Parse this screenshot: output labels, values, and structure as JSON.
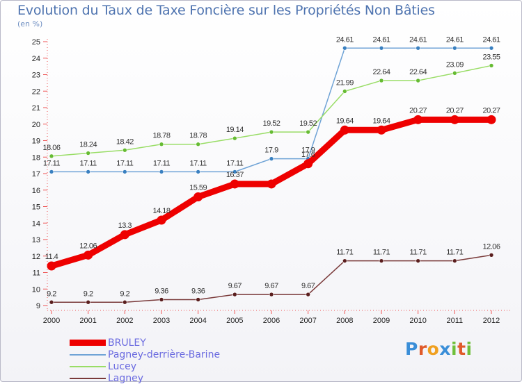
{
  "title": "Evolution du Taux de Taxe Foncière sur les Propriétés Non Bâties",
  "unit_label": "(en %)",
  "logo": {
    "text": "Proxiti",
    "letters": [
      {
        "ch": "P",
        "color": "#3a8ed8"
      },
      {
        "ch": "r",
        "color": "#e05a2a"
      },
      {
        "ch": "o",
        "color": "#f0a020"
      },
      {
        "ch": "x",
        "color": "#3a8ed8"
      },
      {
        "ch": "i",
        "color": "#6fbf3a"
      },
      {
        "ch": "t",
        "color": "#e05a2a"
      },
      {
        "ch": "i",
        "color": "#6fbf3a"
      }
    ]
  },
  "chart_data": {
    "type": "line",
    "title": "Evolution du Taux de Taxe Foncière sur les Propriétés Non Bâties",
    "ylabel": "(en %)",
    "xlabel": "",
    "x": [
      "2000",
      "2001",
      "2002",
      "2003",
      "2004",
      "2005",
      "2006",
      "2007",
      "2008",
      "2009",
      "2010",
      "2011",
      "2012"
    ],
    "ylim": [
      9,
      25
    ],
    "yticks": [
      9,
      10,
      11,
      12,
      13,
      14,
      15,
      16,
      17,
      18,
      19,
      20,
      21,
      22,
      23,
      24,
      25
    ],
    "grid": false,
    "legend_position": "bottom-left",
    "series": [
      {
        "name": "BRULEY",
        "color": "#ee0000",
        "marker": "#ee0000",
        "thick": true,
        "values": [
          11.4,
          12.06,
          13.3,
          14.18,
          15.59,
          16.37,
          16.37,
          17.6,
          19.64,
          19.64,
          20.27,
          20.27,
          20.27
        ],
        "labels": [
          "11.4",
          "12.06",
          "13.3",
          "14.18",
          "15.59",
          "16.37",
          "",
          "17.6",
          "19.64",
          "19.64",
          "20.27",
          "20.27",
          "20.27"
        ]
      },
      {
        "name": "Pagney-derrière-Barine",
        "color": "#6fa3d6",
        "marker": "#3a80c0",
        "thick": false,
        "values": [
          17.11,
          17.11,
          17.11,
          17.11,
          17.11,
          17.11,
          17.9,
          17.9,
          24.61,
          24.61,
          24.61,
          24.61,
          24.61
        ],
        "labels": [
          "17.11",
          "17.11",
          "17.11",
          "17.11",
          "17.11",
          "17.11",
          "17.9",
          "17.9",
          "24.61",
          "24.61",
          "24.61",
          "24.61",
          "24.61"
        ]
      },
      {
        "name": "Lucey",
        "color": "#99dd66",
        "marker": "#66bb33",
        "thick": false,
        "values": [
          18.06,
          18.24,
          18.42,
          18.78,
          18.78,
          19.14,
          19.52,
          19.52,
          21.99,
          22.64,
          22.64,
          23.09,
          23.55
        ],
        "labels": [
          "18.06",
          "18.24",
          "18.42",
          "18.78",
          "18.78",
          "19.14",
          "19.52",
          "19.52",
          "21.99",
          "22.64",
          "22.64",
          "23.09",
          "23.55"
        ]
      },
      {
        "name": "Lagney",
        "color": "#7a3a3a",
        "marker": "#5a1e1e",
        "thick": false,
        "values": [
          9.2,
          9.2,
          9.2,
          9.36,
          9.36,
          9.67,
          9.67,
          9.67,
          11.71,
          11.71,
          11.71,
          11.71,
          12.06
        ],
        "labels": [
          "9.2",
          "9.2",
          "9.2",
          "9.36",
          "9.36",
          "9.67",
          "9.67",
          "9.67",
          "11.71",
          "11.71",
          "11.71",
          "11.71",
          "12.06"
        ]
      }
    ]
  }
}
